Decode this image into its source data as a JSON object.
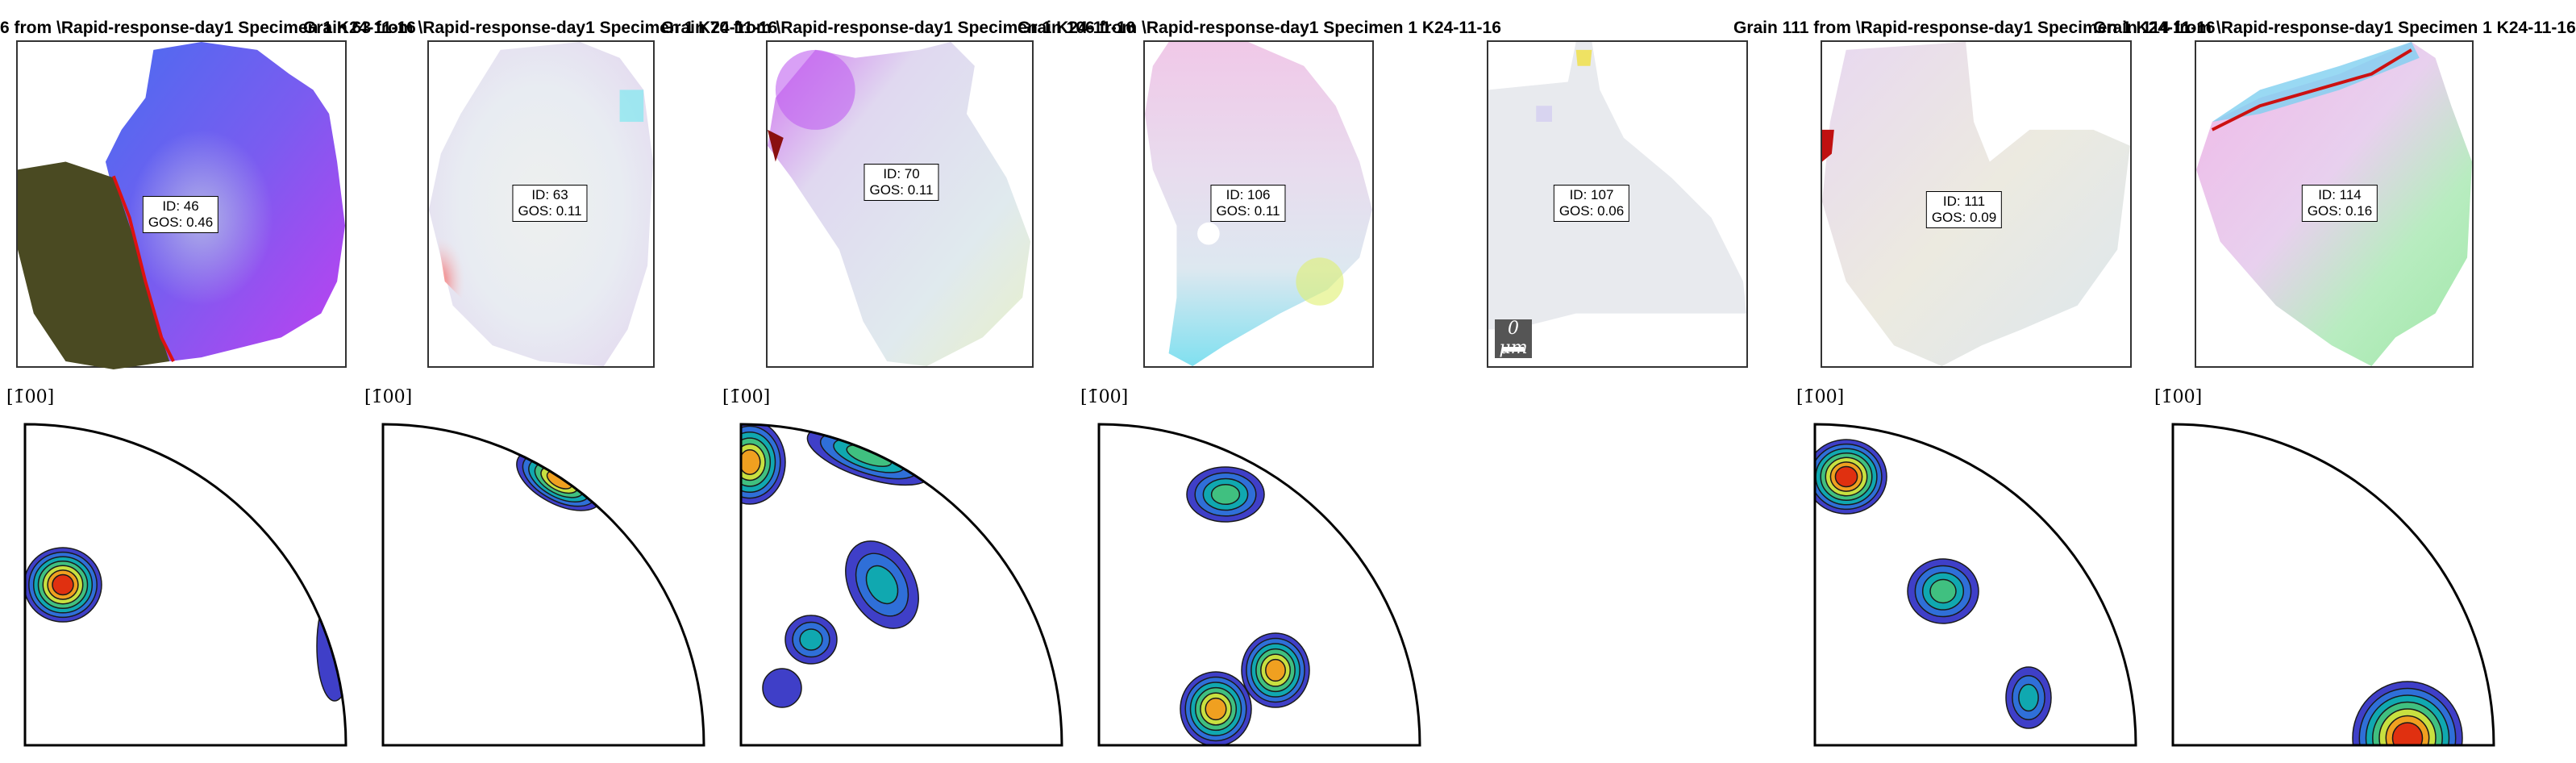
{
  "panels": [
    {
      "title": "6 from \\Rapid-response-day1 Specimen 1 K24-11-16",
      "id_text": "ID: 46",
      "gos_text": "GOS: 0.46",
      "map_key": "m46",
      "pf_key": "p46",
      "axis_label": "[1̄00]"
    },
    {
      "title": "Grain 63 from \\Rapid-response-day1 Specimen 1 K24-11-16",
      "id_text": "ID: 63",
      "gos_text": "GOS: 0.11",
      "map_key": "m63",
      "pf_key": "p63",
      "axis_label": "[1̄00]"
    },
    {
      "title": "Grain 70 from \\Rapid-response-day1 Specimen 1 K24-11-16",
      "id_text": "ID: 70",
      "gos_text": "GOS: 0.11",
      "map_key": "m70",
      "pf_key": "p70",
      "axis_label": "[1̄00]"
    },
    {
      "title": "Grain 106 from \\Rapid-response-day1 Specimen 1 K24-11-16",
      "id_text": "ID: 106",
      "gos_text": "GOS: 0.11",
      "map_key": "m106",
      "pf_key": "p106",
      "axis_label": "[1̄00]"
    },
    {
      "title": "",
      "id_text": "ID: 107",
      "gos_text": "GOS: 0.06",
      "map_key": "m107",
      "pf_key": "",
      "axis_label": "",
      "scale_text": "0 μm"
    },
    {
      "title": "Grain 111 from \\Rapid-response-day1 Specimen 1 K24-11-16",
      "id_text": "ID: 111",
      "gos_text": "GOS: 0.09",
      "map_key": "m111",
      "pf_key": "p111",
      "axis_label": "[1̄00]"
    },
    {
      "title": "Grain 114 from \\Rapid-response-day1 Specimen 1 K24-11-16",
      "id_text": "ID: 114",
      "gos_text": "GOS: 0.16",
      "map_key": "m114",
      "pf_key": "p114",
      "axis_label": "[1̄00]"
    }
  ],
  "contour_colors": [
    "#3f3fc8",
    "#2f6fd8",
    "#10a8b0",
    "#40c080",
    "#c8e040",
    "#f0a020",
    "#e03010"
  ],
  "outline_color": "#1a1a1a",
  "boundary_color": "#dd1111"
}
